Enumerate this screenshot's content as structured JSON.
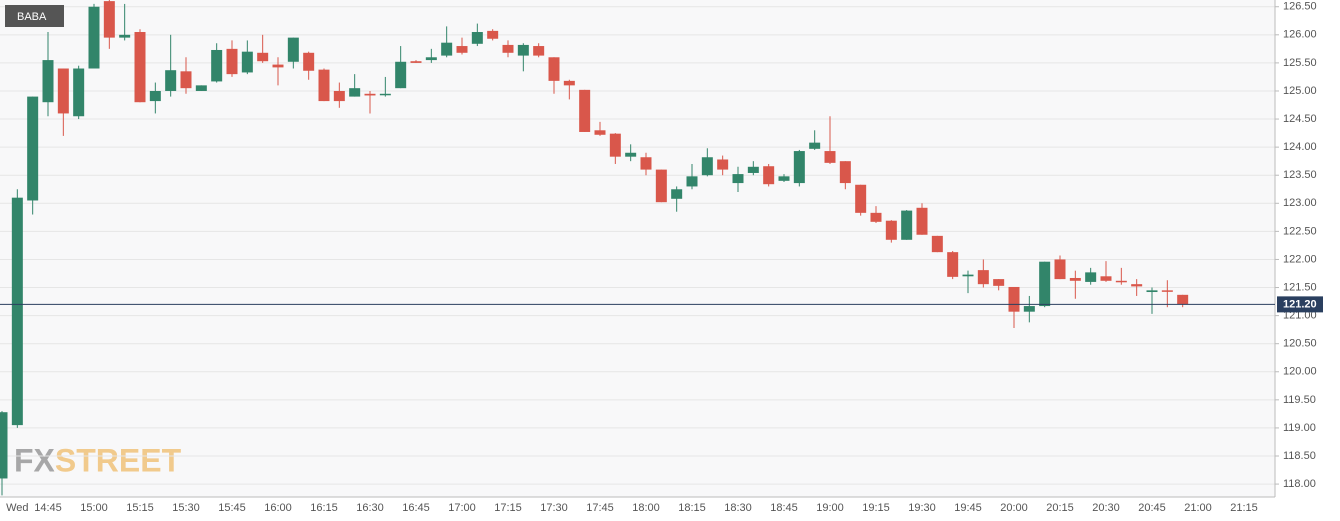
{
  "chart_data": {
    "type": "candlestick",
    "categories": [
      null,
      "Wed",
      null,
      "14:45",
      null,
      null,
      "15:00",
      null,
      null,
      "15:15",
      null,
      null,
      "15:30",
      null,
      null,
      "15:45",
      null,
      null,
      "16:00",
      null,
      null,
      "16:15",
      null,
      null,
      "16:30",
      null,
      null,
      "16:45",
      null,
      null,
      "17:00",
      null,
      null,
      "17:15",
      null,
      null,
      "17:30",
      null,
      null,
      "17:45",
      null,
      null,
      "18:00",
      null,
      null,
      "18:15",
      null,
      null,
      "18:30",
      null,
      null,
      "18:45",
      null,
      null,
      "19:00",
      null,
      null,
      "19:15",
      null,
      null,
      "19:30",
      null,
      null,
      "19:45",
      null,
      null,
      "20:00",
      null,
      null,
      "20:15",
      null,
      null,
      "20:30",
      null,
      null,
      "20:45",
      null,
      null,
      "21:00",
      null,
      null,
      "21:15"
    ],
    "series": [
      {
        "name": "BABA",
        "up_color": "#32856a",
        "down_color": "#d9574b",
        "open": [
          118.1,
          119.05,
          123.05,
          124.8,
          125.4,
          124.55,
          125.4,
          126.6,
          125.95,
          126.05,
          124.82,
          125.0,
          125.35,
          125.0,
          125.17,
          125.75,
          125.33,
          125.68,
          125.47,
          125.52,
          125.68,
          125.38,
          125.0,
          124.9,
          124.95,
          124.93,
          125.05,
          125.53,
          125.55,
          125.63,
          125.8,
          125.84,
          126.07,
          125.82,
          125.63,
          125.8,
          125.6,
          125.18,
          125.02,
          124.3,
          124.24,
          123.83,
          123.82,
          123.6,
          123.08,
          123.3,
          123.5,
          123.78,
          123.36,
          123.54,
          123.66,
          123.4,
          123.36,
          123.97,
          123.93,
          123.75,
          123.33,
          122.83,
          122.69,
          122.35,
          122.92,
          122.42,
          122.13,
          121.7,
          121.81,
          121.65,
          121.51,
          121.07,
          121.17,
          122.0,
          121.67,
          121.6,
          121.7,
          121.62,
          121.56,
          121.42,
          121.45,
          121.37,
          null,
          null,
          null,
          null
        ],
        "high": [
          119.3,
          123.25,
          124.9,
          126.05,
          125.4,
          125.45,
          126.55,
          126.7,
          126.55,
          126.1,
          125.15,
          126.0,
          125.6,
          125.1,
          125.85,
          125.9,
          125.9,
          126.0,
          125.6,
          125.95,
          125.7,
          125.4,
          125.15,
          125.3,
          125.0,
          125.25,
          125.8,
          125.55,
          125.75,
          126.15,
          125.95,
          126.2,
          126.1,
          125.9,
          125.85,
          125.85,
          125.6,
          125.2,
          125.02,
          124.45,
          124.25,
          124.05,
          123.9,
          123.6,
          123.3,
          123.7,
          123.98,
          123.85,
          123.65,
          123.75,
          123.7,
          123.52,
          123.95,
          124.3,
          124.55,
          123.75,
          123.33,
          122.95,
          122.7,
          122.88,
          123.0,
          122.42,
          122.15,
          121.8,
          122.0,
          121.65,
          121.51,
          121.35,
          121.96,
          122.07,
          121.8,
          121.85,
          121.97,
          121.85,
          121.65,
          121.5,
          121.63,
          121.37,
          null,
          null,
          null,
          null
        ],
        "low": [
          117.8,
          119.0,
          122.8,
          124.55,
          124.2,
          124.5,
          125.4,
          125.75,
          125.9,
          124.8,
          124.6,
          124.9,
          124.95,
          125.0,
          125.15,
          125.25,
          125.3,
          125.5,
          125.1,
          125.4,
          125.2,
          124.82,
          124.7,
          124.9,
          124.6,
          124.9,
          125.05,
          125.5,
          125.5,
          125.6,
          125.65,
          125.8,
          125.9,
          125.6,
          125.35,
          125.6,
          124.95,
          124.85,
          124.27,
          124.2,
          123.7,
          123.75,
          123.5,
          123.02,
          122.85,
          123.25,
          123.48,
          123.5,
          123.2,
          123.5,
          123.3,
          123.38,
          123.3,
          123.95,
          123.7,
          123.25,
          122.78,
          122.65,
          122.3,
          122.35,
          122.44,
          122.13,
          121.65,
          121.4,
          121.5,
          121.45,
          120.78,
          120.88,
          121.15,
          121.65,
          121.3,
          121.55,
          121.6,
          121.55,
          121.35,
          121.03,
          121.15,
          121.15,
          null,
          null,
          null,
          null
        ],
        "close": [
          119.28,
          123.1,
          124.9,
          125.55,
          124.6,
          125.4,
          126.5,
          125.95,
          126.0,
          124.8,
          125.0,
          125.37,
          125.05,
          125.1,
          125.73,
          125.3,
          125.7,
          125.53,
          125.42,
          125.95,
          125.36,
          124.82,
          124.82,
          125.05,
          124.92,
          124.95,
          125.52,
          125.5,
          125.6,
          125.86,
          125.68,
          126.05,
          125.93,
          125.68,
          125.82,
          125.63,
          125.18,
          125.1,
          124.27,
          124.22,
          123.83,
          123.9,
          123.6,
          123.02,
          123.25,
          123.48,
          123.82,
          123.6,
          123.52,
          123.65,
          123.34,
          123.48,
          123.93,
          124.08,
          123.72,
          123.36,
          122.83,
          122.67,
          122.35,
          122.87,
          122.44,
          122.13,
          121.69,
          121.73,
          121.56,
          121.53,
          121.07,
          121.17,
          121.96,
          121.65,
          121.62,
          121.77,
          121.62,
          121.6,
          121.52,
          121.45,
          121.43,
          121.2,
          null,
          null,
          null,
          null
        ]
      }
    ],
    "last_value": {
      "value": 121.2,
      "label": "121.20"
    },
    "last_color": "#2a3f5f",
    "ylim": [
      117.77,
      126.62
    ],
    "yticks": [
      {
        "value": 118,
        "label": "118.00"
      },
      {
        "value": 118.5,
        "label": "118.50"
      },
      {
        "value": 119,
        "label": "119.00"
      },
      {
        "value": 119.5,
        "label": "119.50"
      },
      {
        "value": 120,
        "label": "120.00"
      },
      {
        "value": 120.5,
        "label": "120.50"
      },
      {
        "value": 121,
        "label": "121.00"
      },
      {
        "value": 121.5,
        "label": "121.50"
      },
      {
        "value": 122,
        "label": "122.00"
      },
      {
        "value": 122.5,
        "label": "122.50"
      },
      {
        "value": 123,
        "label": "123.00"
      },
      {
        "value": 123.5,
        "label": "123.50"
      },
      {
        "value": 124,
        "label": "124.00"
      },
      {
        "value": 124.5,
        "label": "124.50"
      },
      {
        "value": 125,
        "label": "125.00"
      },
      {
        "value": 125.5,
        "label": "125.50"
      },
      {
        "value": 126,
        "label": "126.00"
      },
      {
        "value": 126.5,
        "label": "126.50"
      }
    ],
    "grid": true,
    "watermark": "FXSTREET"
  }
}
